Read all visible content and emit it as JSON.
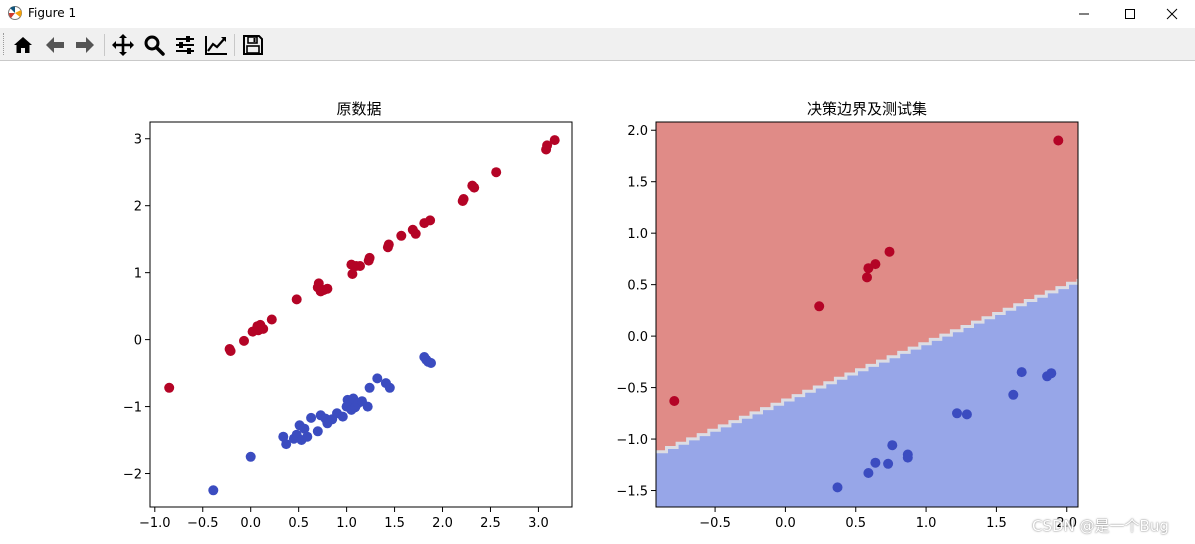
{
  "window": {
    "title": "Figure 1"
  },
  "toolbar": {
    "buttons": [
      "home-icon",
      "back-icon",
      "forward-icon",
      "pan-icon",
      "zoom-icon",
      "configure-icon",
      "edit-axis-icon",
      "save-icon"
    ]
  },
  "watermark": "CSDN @是一个Bug",
  "colors": {
    "red": "#b40426",
    "blue": "#3b4cc0",
    "red_region": "#e08b87",
    "blue_region": "#97a6e8"
  },
  "chart_data": [
    {
      "type": "scatter",
      "title": "原数据",
      "xlabel": "",
      "ylabel": "",
      "xlim": [
        -1.05,
        3.35
      ],
      "ylim": [
        -2.5,
        3.25
      ],
      "xticks": [
        -1.0,
        -0.5,
        0.0,
        0.5,
        1.0,
        1.5,
        2.0,
        2.5,
        3.0
      ],
      "xtick_labels": [
        "−1.0",
        "−0.5",
        "0.0",
        "0.5",
        "1.0",
        "1.5",
        "2.0",
        "2.5",
        "3.0"
      ],
      "yticks": [
        -2,
        -1,
        0,
        1,
        2,
        3
      ],
      "ytick_labels": [
        "−2",
        "−1",
        "0",
        "1",
        "2",
        "3"
      ],
      "series": [
        {
          "color": "#b40426",
          "points": [
            [
              -0.85,
              -0.72
            ],
            [
              -0.22,
              -0.14
            ],
            [
              -0.21,
              -0.17
            ],
            [
              -0.07,
              -0.02
            ],
            [
              0.02,
              0.12
            ],
            [
              0.07,
              0.2
            ],
            [
              0.08,
              0.14
            ],
            [
              0.1,
              0.22
            ],
            [
              0.13,
              0.16
            ],
            [
              0.22,
              0.3
            ],
            [
              0.48,
              0.6
            ],
            [
              0.7,
              0.78
            ],
            [
              0.71,
              0.84
            ],
            [
              0.73,
              0.72
            ],
            [
              0.76,
              0.74
            ],
            [
              0.8,
              0.76
            ],
            [
              1.05,
              1.12
            ],
            [
              1.06,
              0.98
            ],
            [
              1.1,
              1.1
            ],
            [
              1.14,
              1.1
            ],
            [
              1.23,
              1.18
            ],
            [
              1.24,
              1.22
            ],
            [
              1.43,
              1.38
            ],
            [
              1.44,
              1.42
            ],
            [
              1.57,
              1.55
            ],
            [
              1.69,
              1.64
            ],
            [
              1.72,
              1.58
            ],
            [
              1.81,
              1.74
            ],
            [
              1.87,
              1.78
            ],
            [
              2.21,
              2.07
            ],
            [
              2.22,
              2.1
            ],
            [
              2.31,
              2.3
            ],
            [
              2.33,
              2.27
            ],
            [
              2.56,
              2.5
            ],
            [
              3.08,
              2.84
            ],
            [
              3.09,
              2.9
            ],
            [
              3.17,
              2.98
            ]
          ]
        },
        {
          "color": "#3b4cc0",
          "points": [
            [
              -0.39,
              -2.25
            ],
            [
              0.0,
              -1.75
            ],
            [
              0.34,
              -1.45
            ],
            [
              0.37,
              -1.56
            ],
            [
              0.45,
              -1.48
            ],
            [
              0.48,
              -1.42
            ],
            [
              0.51,
              -1.28
            ],
            [
              0.53,
              -1.5
            ],
            [
              0.56,
              -1.33
            ],
            [
              0.59,
              -1.45
            ],
            [
              0.63,
              -1.17
            ],
            [
              0.7,
              -1.37
            ],
            [
              0.73,
              -1.13
            ],
            [
              0.78,
              -1.18
            ],
            [
              0.8,
              -1.25
            ],
            [
              0.85,
              -1.19
            ],
            [
              0.9,
              -1.1
            ],
            [
              0.96,
              -1.15
            ],
            [
              1.0,
              -1.0
            ],
            [
              1.01,
              -0.9
            ],
            [
              1.03,
              -0.95
            ],
            [
              1.05,
              -1.05
            ],
            [
              1.07,
              -0.88
            ],
            [
              1.09,
              -1.01
            ],
            [
              1.12,
              -0.95
            ],
            [
              1.16,
              -0.92
            ],
            [
              1.22,
              -1.0
            ],
            [
              1.24,
              -0.72
            ],
            [
              1.32,
              -0.58
            ],
            [
              1.41,
              -0.65
            ],
            [
              1.45,
              -0.72
            ],
            [
              1.81,
              -0.26
            ],
            [
              1.83,
              -0.3
            ],
            [
              1.85,
              -0.33
            ],
            [
              1.88,
              -0.35
            ]
          ]
        }
      ]
    },
    {
      "type": "scatter",
      "title": "决策边界及测试集",
      "xlabel": "",
      "ylabel": "",
      "xlim": [
        -0.92,
        2.08
      ],
      "ylim": [
        -1.66,
        2.08
      ],
      "xticks": [
        -0.5,
        0.0,
        0.5,
        1.0,
        1.5,
        2.0
      ],
      "xtick_labels": [
        "−0.5",
        "0.0",
        "0.5",
        "1.0",
        "1.5",
        "2.0"
      ],
      "yticks": [
        -1.5,
        -1.0,
        -0.5,
        0.0,
        0.5,
        1.0,
        1.5,
        2.0
      ],
      "ytick_labels": [
        "−1.5",
        "−1.0",
        "−0.5",
        "0.0",
        "0.5",
        "1.0",
        "1.5",
        "2.0"
      ],
      "decision_boundary": {
        "slope": 0.56,
        "intercept": -0.63
      },
      "series": [
        {
          "color": "#b40426",
          "points": [
            [
              -0.79,
              -0.63
            ],
            [
              0.24,
              0.29
            ],
            [
              0.58,
              0.57
            ],
            [
              0.59,
              0.66
            ],
            [
              0.64,
              0.7
            ],
            [
              0.74,
              0.82
            ],
            [
              1.94,
              1.9
            ]
          ]
        },
        {
          "color": "#3b4cc0",
          "points": [
            [
              0.37,
              -1.47
            ],
            [
              0.59,
              -1.33
            ],
            [
              0.64,
              -1.23
            ],
            [
              0.73,
              -1.24
            ],
            [
              0.76,
              -1.06
            ],
            [
              0.87,
              -1.15
            ],
            [
              0.87,
              -1.18
            ],
            [
              1.22,
              -0.75
            ],
            [
              1.29,
              -0.76
            ],
            [
              1.62,
              -0.57
            ],
            [
              1.68,
              -0.35
            ],
            [
              1.86,
              -0.39
            ],
            [
              1.89,
              -0.36
            ]
          ]
        }
      ]
    }
  ]
}
